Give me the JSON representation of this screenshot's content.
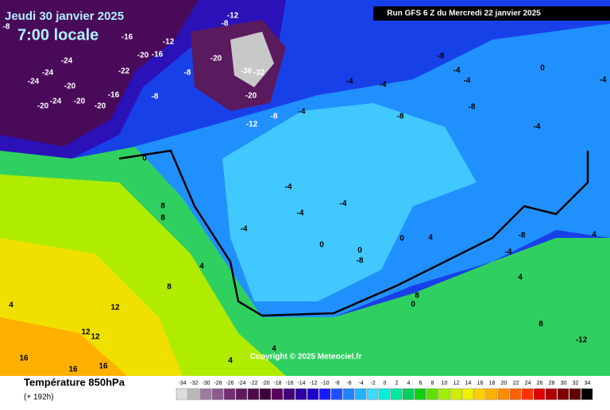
{
  "header": {
    "date": "Jeudi 30 janvier 2025",
    "time": "7:00 locale",
    "run": "Run GFS 6 Z du Mercredi 22 janvier 2025"
  },
  "copyright": "Copyright © 2025 Meteociel.fr",
  "footer": {
    "title": "Température 850hPa",
    "lead": "(+ 192h)"
  },
  "legend": {
    "ticks": [
      -34,
      -32,
      -30,
      -28,
      -26,
      -24,
      -22,
      -20,
      -18,
      -16,
      -14,
      -12,
      -10,
      -8,
      -6,
      -4,
      -2,
      0,
      2,
      4,
      6,
      8,
      10,
      12,
      14,
      16,
      18,
      20,
      22,
      24,
      26,
      28,
      30,
      32,
      34
    ],
    "colors": [
      "#dcdcdc",
      "#b8b8b8",
      "#9c7c9c",
      "#8c5a8c",
      "#742e74",
      "#5e1a5e",
      "#4c0c4c",
      "#3c003c",
      "#5a0060",
      "#420078",
      "#2c00a0",
      "#1e00c8",
      "#1a1aff",
      "#1f50ff",
      "#1f82ff",
      "#20b4ff",
      "#40d8ff",
      "#00f0e0",
      "#00e8a0",
      "#00d060",
      "#10d010",
      "#60e000",
      "#a0f000",
      "#d0f000",
      "#f0f000",
      "#ffd000",
      "#ffb000",
      "#ff8c00",
      "#ff6000",
      "#ff3000",
      "#e00000",
      "#b00000",
      "#800000",
      "#600000",
      "#000000"
    ]
  },
  "map_labels": [
    "-8",
    "-16",
    "-12",
    "-8",
    "-12",
    "-24",
    "-24",
    "-24",
    "-20",
    "-24",
    "-20",
    "-20",
    "-20",
    "-16",
    "-20",
    "-16",
    "-22",
    "-20",
    "-8",
    "-20",
    "-8",
    "-12",
    "-8",
    "-32",
    "-36",
    "-4",
    "-4",
    "-4",
    "-8",
    "-4",
    "-4",
    "-8",
    "-8",
    "0",
    "-4",
    "-4",
    "0",
    "-4",
    "-4",
    "-4",
    "-4",
    "0",
    "0",
    "-8",
    "0",
    "4",
    "-4",
    "4",
    "-8",
    "4",
    "8",
    "8",
    "4",
    "8",
    "12",
    "12",
    "12",
    "16",
    "16",
    "16",
    "4",
    "8",
    "0",
    "8",
    "-12",
    "4",
    "4"
  ]
}
